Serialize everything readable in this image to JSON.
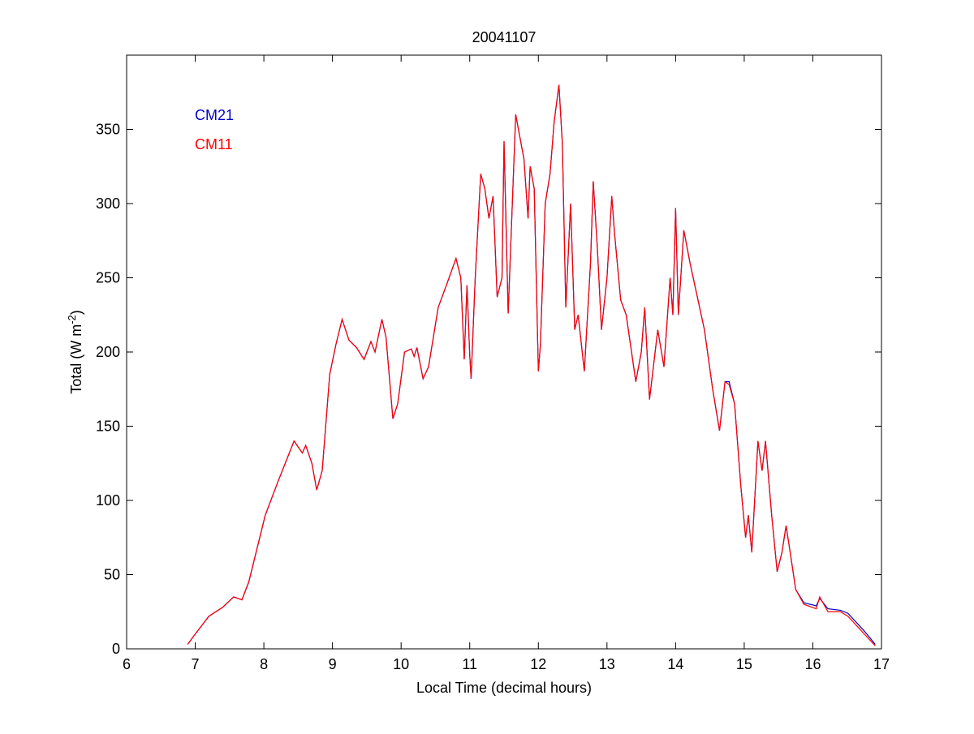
{
  "chart_data": {
    "type": "line",
    "title": "20041107",
    "xlabel": "Local Time (decimal hours)",
    "ylabel": {
      "text": "Total (W m",
      "sup": "-2",
      "tail": ")"
    },
    "xlim": [
      6,
      17
    ],
    "xticks": [
      6,
      7,
      8,
      9,
      10,
      11,
      12,
      13,
      14,
      15,
      16,
      17
    ],
    "ylim": [
      0,
      400
    ],
    "yticks": [
      0,
      50,
      100,
      150,
      200,
      250,
      300,
      350
    ],
    "grid": false,
    "legend": "upper left",
    "x": [
      6.89,
      7.0,
      7.2,
      7.4,
      7.56,
      7.68,
      7.78,
      7.86,
      8.02,
      8.2,
      8.44,
      8.56,
      8.61,
      8.7,
      8.77,
      8.85,
      8.96,
      9.05,
      9.14,
      9.24,
      9.35,
      9.46,
      9.56,
      9.62,
      9.72,
      9.78,
      9.88,
      9.95,
      10.05,
      10.15,
      10.19,
      10.23,
      10.32,
      10.4,
      10.54,
      10.66,
      10.8,
      10.87,
      10.92,
      10.96,
      11.0,
      11.02,
      11.08,
      11.16,
      11.22,
      11.28,
      11.34,
      11.4,
      11.47,
      11.5,
      11.56,
      11.67,
      11.79,
      11.85,
      11.88,
      11.94,
      12.0,
      12.03,
      12.1,
      12.17,
      12.23,
      12.3,
      12.35,
      12.4,
      12.47,
      12.53,
      12.58,
      12.67,
      12.76,
      12.8,
      12.86,
      12.92,
      13.0,
      13.07,
      13.11,
      13.2,
      13.28,
      13.42,
      13.5,
      13.55,
      13.62,
      13.74,
      13.83,
      13.92,
      13.96,
      14.0,
      14.04,
      14.12,
      14.21,
      14.35,
      14.42,
      14.54,
      14.64,
      14.72,
      14.78,
      14.86,
      14.95,
      15.02,
      15.06,
      15.11,
      15.2,
      15.26,
      15.31,
      15.4,
      15.48,
      15.55,
      15.61,
      15.67,
      15.75,
      15.87,
      16.05,
      16.1,
      16.22,
      16.4,
      16.51,
      16.75,
      16.91
    ],
    "series": [
      {
        "name": "CM21",
        "color": "#0000c8",
        "values": [
          3,
          10,
          22,
          28,
          35,
          33,
          45,
          60,
          90,
          112,
          140,
          132,
          137,
          125,
          107,
          120,
          185,
          205,
          222,
          208,
          203,
          195,
          207,
          200,
          222,
          210,
          155,
          165,
          200,
          202,
          197,
          203,
          182,
          190,
          230,
          245,
          263,
          250,
          195,
          245,
          198,
          182,
          250,
          320,
          310,
          290,
          305,
          237,
          250,
          342,
          226,
          360,
          330,
          290,
          325,
          310,
          187,
          205,
          300,
          320,
          355,
          380,
          340,
          230,
          300,
          215,
          225,
          187,
          260,
          315,
          270,
          215,
          250,
          305,
          280,
          235,
          225,
          180,
          200,
          230,
          168,
          215,
          190,
          250,
          225,
          297,
          225,
          282,
          260,
          230,
          215,
          175,
          147,
          180,
          180,
          165,
          110,
          75,
          90,
          65,
          140,
          120,
          140,
          90,
          52,
          65,
          83,
          65,
          40,
          31,
          29,
          34,
          27,
          26,
          24,
          12,
          3
        ]
      },
      {
        "name": "CM11",
        "color": "#ff0000",
        "values": [
          3,
          10,
          22,
          28,
          35,
          33,
          45,
          60,
          90,
          112,
          140,
          132,
          137,
          125,
          107,
          120,
          185,
          205,
          222,
          208,
          203,
          195,
          207,
          200,
          222,
          210,
          155,
          165,
          200,
          202,
          197,
          203,
          182,
          190,
          230,
          245,
          263,
          250,
          195,
          245,
          198,
          182,
          250,
          320,
          310,
          290,
          305,
          237,
          250,
          342,
          226,
          360,
          330,
          290,
          325,
          310,
          187,
          205,
          300,
          320,
          355,
          380,
          340,
          230,
          300,
          215,
          225,
          187,
          260,
          315,
          270,
          215,
          250,
          305,
          280,
          235,
          225,
          180,
          200,
          230,
          168,
          215,
          190,
          250,
          225,
          297,
          225,
          282,
          260,
          230,
          215,
          175,
          147,
          180,
          178,
          165,
          110,
          75,
          90,
          65,
          140,
          120,
          140,
          90,
          52,
          65,
          83,
          65,
          40,
          30,
          27,
          35,
          25,
          25,
          22,
          10,
          2
        ]
      }
    ]
  }
}
